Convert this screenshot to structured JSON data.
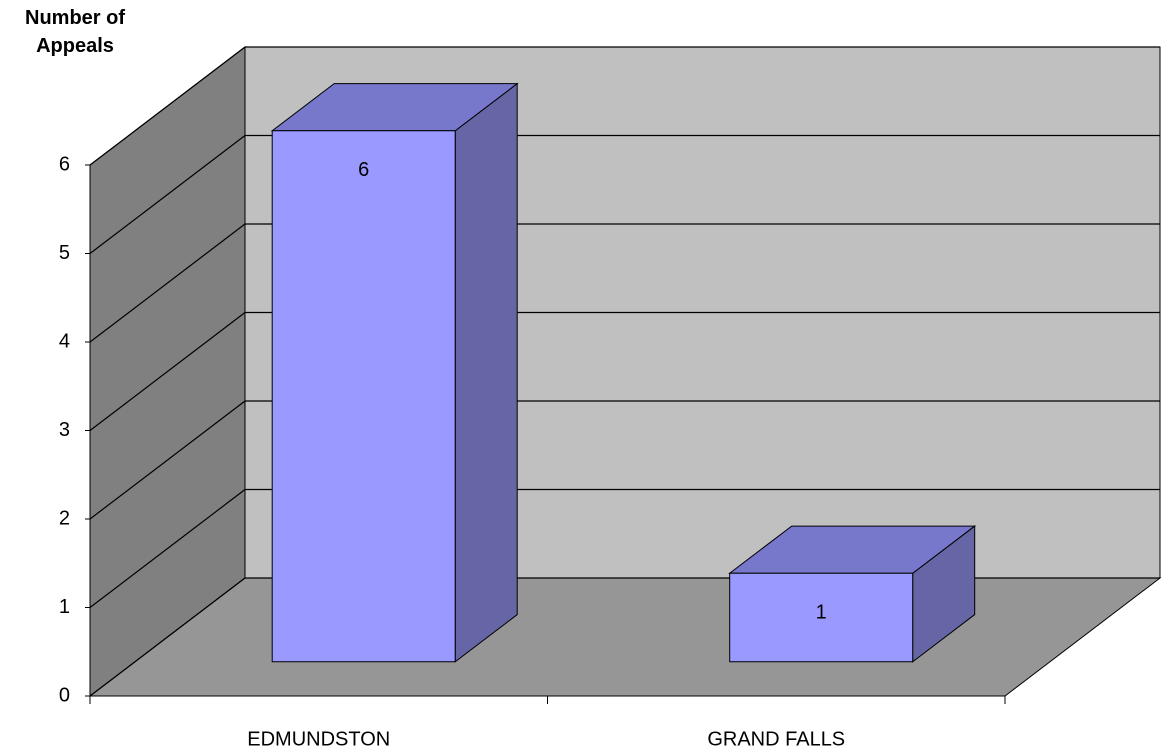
{
  "chart_data": {
    "type": "bar3d",
    "y_label": "Number of Appeals",
    "categories": [
      "EDMUNDSTON",
      "GRAND FALLS"
    ],
    "values": [
      6,
      1
    ],
    "colors": {
      "front": "#9999ff",
      "top": "#7777cc",
      "side": "#6666a6"
    },
    "ylim": [
      0,
      6
    ],
    "yticks": [
      0,
      1,
      2,
      3,
      4,
      5,
      6
    ],
    "grid": true
  }
}
